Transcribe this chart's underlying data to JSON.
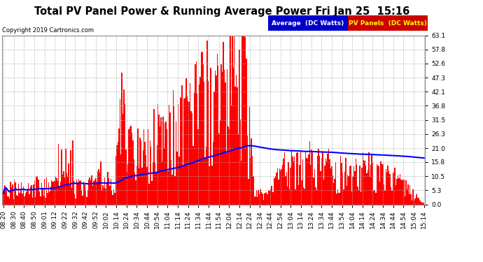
{
  "title": "Total PV Panel Power & Running Average Power Fri Jan 25  15:16",
  "copyright": "Copyright 2019 Cartronics.com",
  "ylabel_values": [
    0.0,
    5.3,
    10.5,
    15.8,
    21.0,
    26.3,
    31.5,
    36.8,
    42.1,
    47.3,
    52.6,
    57.8,
    63.1
  ],
  "y_max": 63.1,
  "y_min": 0.0,
  "background_color": "#ffffff",
  "plot_bg_color": "#ffffff",
  "grid_color": "#aaaaaa",
  "bar_color": "#ff0000",
  "avg_line_color": "#0000ff",
  "legend_avg_bg": "#0000bb",
  "legend_pv_bg": "#dd0000",
  "title_fontsize": 10.5,
  "tick_fontsize": 6.5,
  "x_tick_labels": [
    "08:20",
    "08:30",
    "08:40",
    "08:50",
    "09:01",
    "09:12",
    "09:22",
    "09:32",
    "09:42",
    "09:52",
    "10:02",
    "10:14",
    "10:24",
    "10:34",
    "10:44",
    "10:54",
    "11:04",
    "11:14",
    "11:24",
    "11:34",
    "11:44",
    "11:54",
    "12:04",
    "12:14",
    "12:24",
    "12:34",
    "12:44",
    "12:54",
    "13:04",
    "13:14",
    "13:24",
    "13:34",
    "13:44",
    "13:54",
    "14:04",
    "14:14",
    "14:24",
    "14:34",
    "14:44",
    "14:54",
    "15:04",
    "15:14"
  ],
  "num_bars": 420,
  "seed": 42
}
